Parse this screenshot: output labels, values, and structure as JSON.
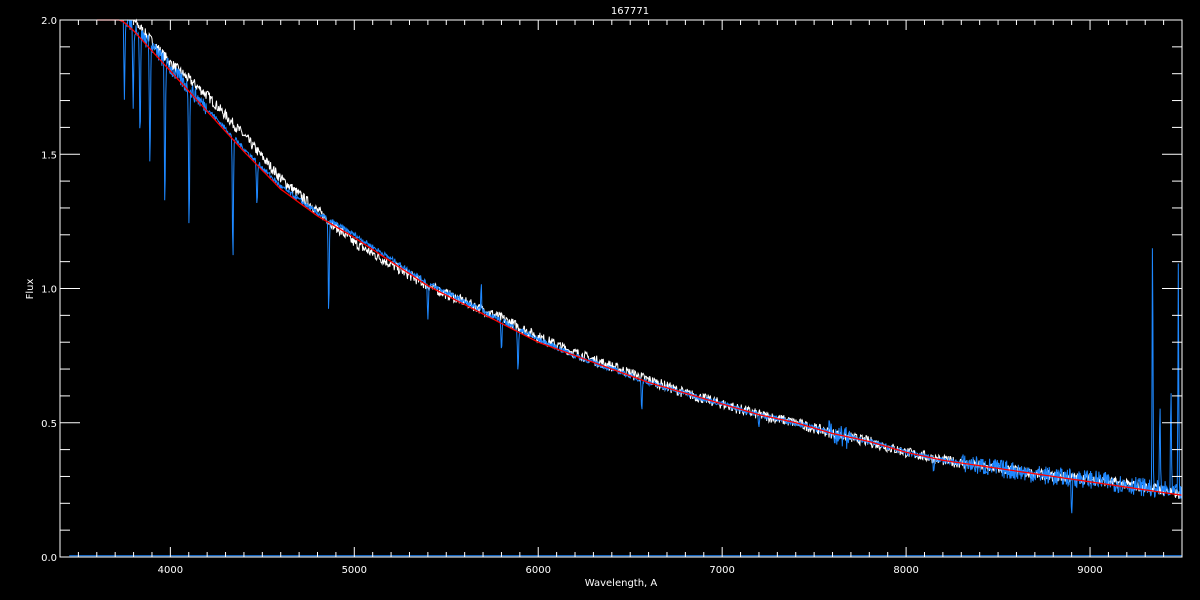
{
  "chart_data": {
    "type": "line",
    "title": "167771",
    "xlabel": "Wavelength, A",
    "ylabel": "Flux",
    "xlim": [
      3400,
      9500
    ],
    "ylim": [
      0.0,
      2.0
    ],
    "xticks": [
      "4000",
      "5000",
      "6000",
      "7000",
      "8000",
      "9000"
    ],
    "yticks": [
      "0.0",
      "0.5",
      "1.0",
      "1.5",
      "2.0"
    ],
    "grid": false,
    "background": "#000000",
    "series": [
      {
        "color": "#ffffff",
        "x": [
          3600,
          3800,
          4000,
          4200,
          4400,
          4600,
          4800,
          5000,
          5200,
          5400,
          5600,
          5800,
          6000,
          6200,
          6400,
          6600,
          6800,
          7000,
          7200,
          7400,
          7600,
          7800,
          8000,
          8200,
          8400,
          8600,
          8800,
          9000,
          9200,
          9400,
          9500
        ],
        "y": [
          2.1,
          2.0,
          1.84,
          1.72,
          1.57,
          1.41,
          1.29,
          1.17,
          1.09,
          1.01,
          0.95,
          0.89,
          0.82,
          0.76,
          0.71,
          0.66,
          0.61,
          0.57,
          0.53,
          0.5,
          0.46,
          0.43,
          0.39,
          0.36,
          0.34,
          0.32,
          0.3,
          0.29,
          0.27,
          0.25,
          0.23
        ]
      },
      {
        "color": "#1e88ff",
        "x": [
          3600,
          3800,
          4000,
          4200,
          4400,
          4600,
          4800,
          5000,
          5200,
          5400,
          5600,
          5800,
          6000,
          6200,
          6400,
          6600,
          6800,
          7000,
          7200,
          7400,
          7600,
          7800,
          8000,
          8200,
          8400,
          8600,
          8800,
          9000,
          9200,
          9400,
          9500
        ],
        "y": [
          2.1,
          1.98,
          1.82,
          1.67,
          1.52,
          1.38,
          1.28,
          1.2,
          1.11,
          1.02,
          0.95,
          0.88,
          0.81,
          0.75,
          0.7,
          0.65,
          0.61,
          0.57,
          0.53,
          0.5,
          0.46,
          0.43,
          0.39,
          0.36,
          0.34,
          0.32,
          0.3,
          0.29,
          0.27,
          0.25,
          0.23
        ],
        "absorption_lines": [
          {
            "x": 3750,
            "y": 1.72
          },
          {
            "x": 3798,
            "y": 1.68
          },
          {
            "x": 3835,
            "y": 1.55
          },
          {
            "x": 3889,
            "y": 1.45
          },
          {
            "x": 3970,
            "y": 1.3
          },
          {
            "x": 4102,
            "y": 1.24
          },
          {
            "x": 4340,
            "y": 1.1
          },
          {
            "x": 4471,
            "y": 1.3
          },
          {
            "x": 4861,
            "y": 0.9
          },
          {
            "x": 5400,
            "y": 0.88
          },
          {
            "x": 5800,
            "y": 0.77
          },
          {
            "x": 5890,
            "y": 0.68
          },
          {
            "x": 6563,
            "y": 0.55
          },
          {
            "x": 7200,
            "y": 0.49
          },
          {
            "x": 8150,
            "y": 0.32
          },
          {
            "x": 8900,
            "y": 0.16
          }
        ],
        "emission_spikes": [
          {
            "x": 5690,
            "y": 1.02
          },
          {
            "x": 9340,
            "y": 1.22
          },
          {
            "x": 9380,
            "y": 0.6
          },
          {
            "x": 9440,
            "y": 0.65
          },
          {
            "x": 9480,
            "y": 1.12
          }
        ]
      },
      {
        "color": "#ff0000",
        "x": [
          3600,
          3800,
          4000,
          4200,
          4400,
          4600,
          4800,
          5000,
          5200,
          5400,
          5600,
          5800,
          6000,
          6200,
          6400,
          6600,
          6800,
          7000,
          7200,
          7400,
          7600,
          7800,
          8000,
          8200,
          8400,
          8600,
          8800,
          9000,
          9200,
          9400,
          9500
        ],
        "y": [
          2.08,
          1.96,
          1.81,
          1.66,
          1.51,
          1.37,
          1.27,
          1.19,
          1.1,
          1.01,
          0.94,
          0.87,
          0.8,
          0.75,
          0.7,
          0.65,
          0.61,
          0.57,
          0.53,
          0.5,
          0.46,
          0.43,
          0.39,
          0.36,
          0.34,
          0.32,
          0.3,
          0.28,
          0.26,
          0.24,
          0.23
        ]
      },
      {
        "color": "#1e88ff",
        "x": [
          3450,
          9300,
          9500
        ],
        "y": [
          0.005,
          0.005,
          0.005
        ]
      }
    ]
  }
}
